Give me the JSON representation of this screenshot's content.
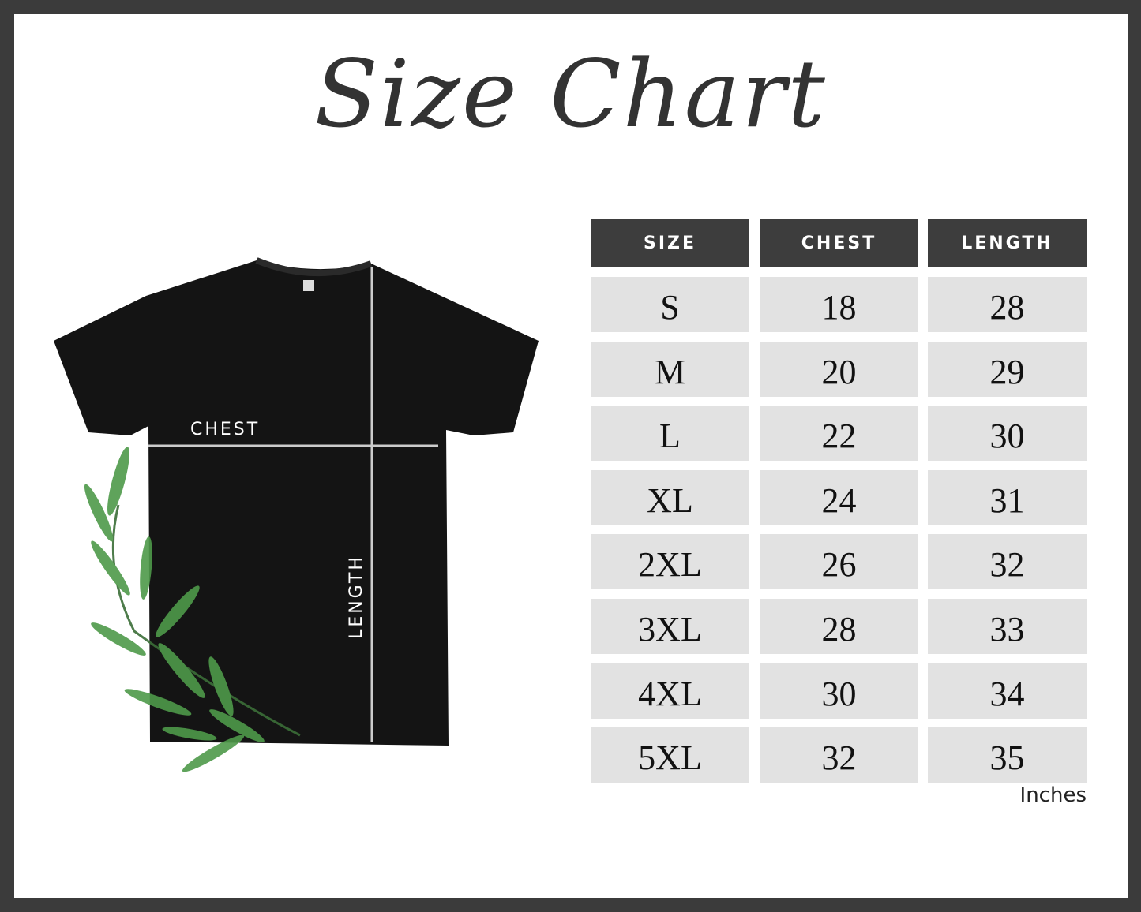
{
  "title": "Size Chart",
  "table": {
    "headers": [
      "SIZE",
      "CHEST",
      "LENGTH"
    ],
    "rows": [
      [
        "S",
        "18",
        "28"
      ],
      [
        "M",
        "20",
        "29"
      ],
      [
        "L",
        "22",
        "30"
      ],
      [
        "XL",
        "24",
        "31"
      ],
      [
        "2XL",
        "26",
        "32"
      ],
      [
        "3XL",
        "28",
        "33"
      ],
      [
        "4XL",
        "30",
        "34"
      ],
      [
        "5XL",
        "32",
        "35"
      ]
    ],
    "units": "Inches"
  },
  "diagram": {
    "chest_label": "CHEST",
    "length_label": "LENGTH"
  },
  "colors": {
    "border": "#3b3b3b",
    "header_bg": "#3d3d3d",
    "cell_bg": "#e2e2e2",
    "leaf": "#4e9a4a"
  }
}
